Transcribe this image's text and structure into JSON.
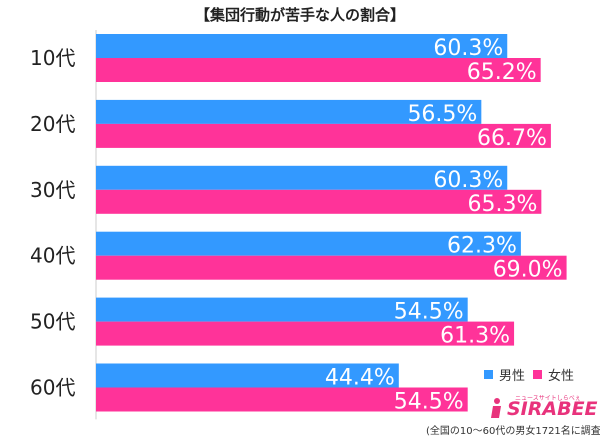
{
  "chart_data": {
    "type": "bar",
    "orientation": "horizontal",
    "title": "【集団行動が苦手な人の割合】",
    "categories": [
      "10代",
      "20代",
      "30代",
      "40代",
      "50代",
      "60代"
    ],
    "series": [
      {
        "name": "男性",
        "values": [
          60.3,
          56.5,
          60.3,
          62.3,
          54.5,
          44.4
        ],
        "labels": [
          "60.3%",
          "56.5%",
          "60.3%",
          "62.3%",
          "54.5%",
          "44.4%"
        ],
        "color": "#3399ff"
      },
      {
        "name": "女性",
        "values": [
          65.2,
          66.7,
          65.3,
          69.0,
          61.3,
          54.5
        ],
        "labels": [
          "65.2%",
          "66.7%",
          "65.3%",
          "69.0%",
          "61.3%",
          "54.5%"
        ],
        "color": "#ff3399"
      }
    ],
    "xlim": [
      0,
      100
    ],
    "grid": false,
    "legend": "bottom-right"
  },
  "legend": {
    "male": "男性",
    "female": "女性"
  },
  "logo": {
    "name": "SIRABEE",
    "tagline": "ニュースサイトしらべぇ"
  },
  "footnote": "(全国の10～60代の男女1721名に調査)"
}
